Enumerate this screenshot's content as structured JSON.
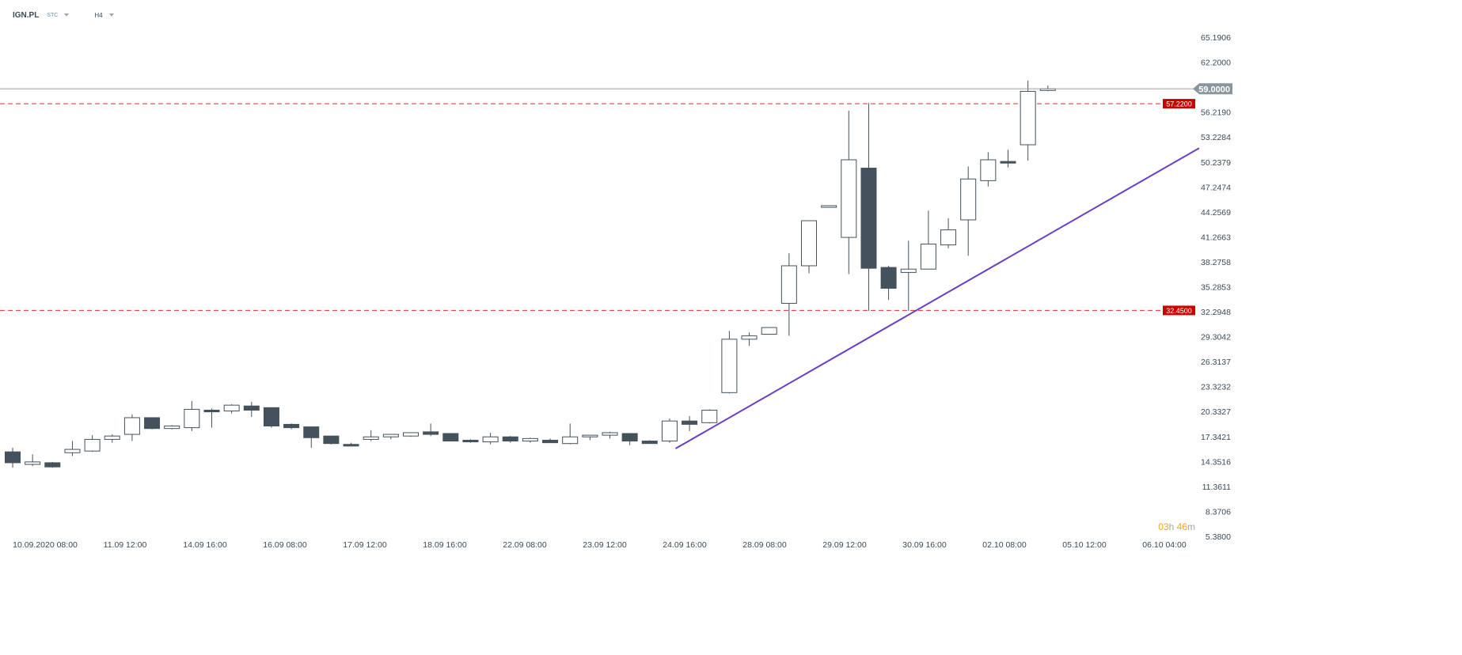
{
  "header": {
    "symbol": "IGN.PL",
    "exchange": "STC",
    "timeframe": "H4"
  },
  "timer": {
    "hours": "03",
    "h_unit": "h",
    "minutes": "46",
    "m_unit": "m"
  },
  "colors": {
    "bear_fill": "#44525c",
    "bull_fill": "#ffffff",
    "candle_stroke": "#44525c",
    "level_line": "#e0302e",
    "level_label_bg": "#cc0000",
    "trendline": "#6a3fc7",
    "price_line": "#9aa0a6",
    "price_label_bg": "#8b959c"
  },
  "chart_data": {
    "type": "candlestick",
    "symbol": "IGN.PL",
    "interval": "H4",
    "y_ticks": [
      "65.1906",
      "62.2000",
      "56.2190",
      "53.2284",
      "50.2379",
      "47.2474",
      "44.2569",
      "41.2663",
      "38.2758",
      "35.2853",
      "32.2948",
      "29.3042",
      "26.3137",
      "23.3232",
      "20.3327",
      "17.3421",
      "14.3516",
      "11.3611",
      "8.3706",
      "5.3800"
    ],
    "ylim": [
      5.38,
      65.1906
    ],
    "x_ticks": [
      "10.09.2020  08:00",
      "11.09  12:00",
      "14.09  16:00",
      "16.09  08:00",
      "17.09  12:00",
      "18.09  16:00",
      "22.09  08:00",
      "23.09  12:00",
      "24.09  16:00",
      "28.09  08:00",
      "29.09  12:00",
      "30.09  16:00",
      "02.10  08:00",
      "05.10  12:00",
      "06.10  04:00"
    ],
    "current_price": "59.0000",
    "levels": [
      "57.2200",
      "32.4500"
    ],
    "trendline": {
      "start_bar": 33.3,
      "start_price": 15.9,
      "end_bar": 59.6,
      "end_price": 51.9
    },
    "candles": [
      {
        "o": 15.5,
        "h": 16.0,
        "l": 13.6,
        "c": 14.2
      },
      {
        "o": 14.0,
        "h": 15.2,
        "l": 13.8,
        "c": 14.3
      },
      {
        "o": 14.2,
        "h": 14.3,
        "l": 13.6,
        "c": 13.7
      },
      {
        "o": 15.4,
        "h": 16.8,
        "l": 15.0,
        "c": 15.8
      },
      {
        "o": 15.6,
        "h": 17.5,
        "l": 15.5,
        "c": 17.0
      },
      {
        "o": 17.0,
        "h": 17.6,
        "l": 16.6,
        "c": 17.4
      },
      {
        "o": 17.6,
        "h": 20.0,
        "l": 16.8,
        "c": 19.6
      },
      {
        "o": 19.6,
        "h": 19.6,
        "l": 18.2,
        "c": 18.3
      },
      {
        "o": 18.3,
        "h": 18.7,
        "l": 18.2,
        "c": 18.6
      },
      {
        "o": 18.4,
        "h": 21.6,
        "l": 18.0,
        "c": 20.6
      },
      {
        "o": 20.5,
        "h": 20.7,
        "l": 18.4,
        "c": 20.3
      },
      {
        "o": 20.4,
        "h": 21.2,
        "l": 20.1,
        "c": 21.1
      },
      {
        "o": 21.0,
        "h": 21.5,
        "l": 19.7,
        "c": 20.5
      },
      {
        "o": 20.8,
        "h": 20.8,
        "l": 18.4,
        "c": 18.6
      },
      {
        "o": 18.8,
        "h": 18.9,
        "l": 18.2,
        "c": 18.4
      },
      {
        "o": 18.5,
        "h": 18.5,
        "l": 16.0,
        "c": 17.2
      },
      {
        "o": 17.4,
        "h": 17.4,
        "l": 16.4,
        "c": 16.5
      },
      {
        "o": 16.4,
        "h": 16.6,
        "l": 16.2,
        "c": 16.2
      },
      {
        "o": 17.0,
        "h": 18.1,
        "l": 16.8,
        "c": 17.3
      },
      {
        "o": 17.3,
        "h": 17.6,
        "l": 17.0,
        "c": 17.6
      },
      {
        "o": 17.4,
        "h": 17.8,
        "l": 17.3,
        "c": 17.8
      },
      {
        "o": 17.9,
        "h": 18.9,
        "l": 17.4,
        "c": 17.6
      },
      {
        "o": 17.7,
        "h": 17.7,
        "l": 16.8,
        "c": 16.8
      },
      {
        "o": 16.9,
        "h": 17.0,
        "l": 16.6,
        "c": 16.7
      },
      {
        "o": 16.7,
        "h": 17.8,
        "l": 16.4,
        "c": 17.3
      },
      {
        "o": 17.3,
        "h": 17.4,
        "l": 16.6,
        "c": 16.8
      },
      {
        "o": 16.8,
        "h": 17.2,
        "l": 16.6,
        "c": 17.1
      },
      {
        "o": 16.9,
        "h": 17.1,
        "l": 16.6,
        "c": 16.6
      },
      {
        "o": 16.5,
        "h": 18.9,
        "l": 16.4,
        "c": 17.3
      },
      {
        "o": 17.3,
        "h": 17.5,
        "l": 16.9,
        "c": 17.5
      },
      {
        "o": 17.5,
        "h": 17.9,
        "l": 17.1,
        "c": 17.8
      },
      {
        "o": 17.7,
        "h": 17.7,
        "l": 16.3,
        "c": 16.8
      },
      {
        "o": 16.8,
        "h": 16.9,
        "l": 16.5,
        "c": 16.5
      },
      {
        "o": 16.8,
        "h": 19.5,
        "l": 16.6,
        "c": 19.2
      },
      {
        "o": 19.2,
        "h": 19.8,
        "l": 18.0,
        "c": 18.8
      },
      {
        "o": 19.0,
        "h": 20.6,
        "l": 18.9,
        "c": 20.5
      },
      {
        "o": 22.6,
        "h": 30.0,
        "l": 22.5,
        "c": 29.0
      },
      {
        "o": 29.0,
        "h": 29.8,
        "l": 28.2,
        "c": 29.4
      },
      {
        "o": 29.6,
        "h": 30.4,
        "l": 29.6,
        "c": 30.4
      },
      {
        "o": 33.3,
        "h": 39.3,
        "l": 29.4,
        "c": 37.8
      },
      {
        "o": 37.8,
        "h": 43.2,
        "l": 36.9,
        "c": 43.2
      },
      {
        "o": 44.8,
        "h": 45.0,
        "l": 44.8,
        "c": 45.0
      },
      {
        "o": 41.2,
        "h": 56.4,
        "l": 36.8,
        "c": 50.5
      },
      {
        "o": 49.5,
        "h": 57.3,
        "l": 32.4,
        "c": 37.5
      },
      {
        "o": 37.6,
        "h": 37.8,
        "l": 33.7,
        "c": 35.1
      },
      {
        "o": 37.0,
        "h": 40.8,
        "l": 32.4,
        "c": 37.4
      },
      {
        "o": 37.4,
        "h": 44.4,
        "l": 37.4,
        "c": 40.4
      },
      {
        "o": 40.3,
        "h": 43.5,
        "l": 39.9,
        "c": 42.1
      },
      {
        "o": 43.3,
        "h": 49.7,
        "l": 39.0,
        "c": 48.2
      },
      {
        "o": 48.0,
        "h": 51.4,
        "l": 47.3,
        "c": 50.5
      },
      {
        "o": 50.3,
        "h": 51.7,
        "l": 49.6,
        "c": 50.1
      },
      {
        "o": 52.3,
        "h": 60.0,
        "l": 50.4,
        "c": 58.7
      },
      {
        "o": 59.0,
        "h": 59.4,
        "l": 58.7,
        "c": 59.0
      }
    ]
  }
}
